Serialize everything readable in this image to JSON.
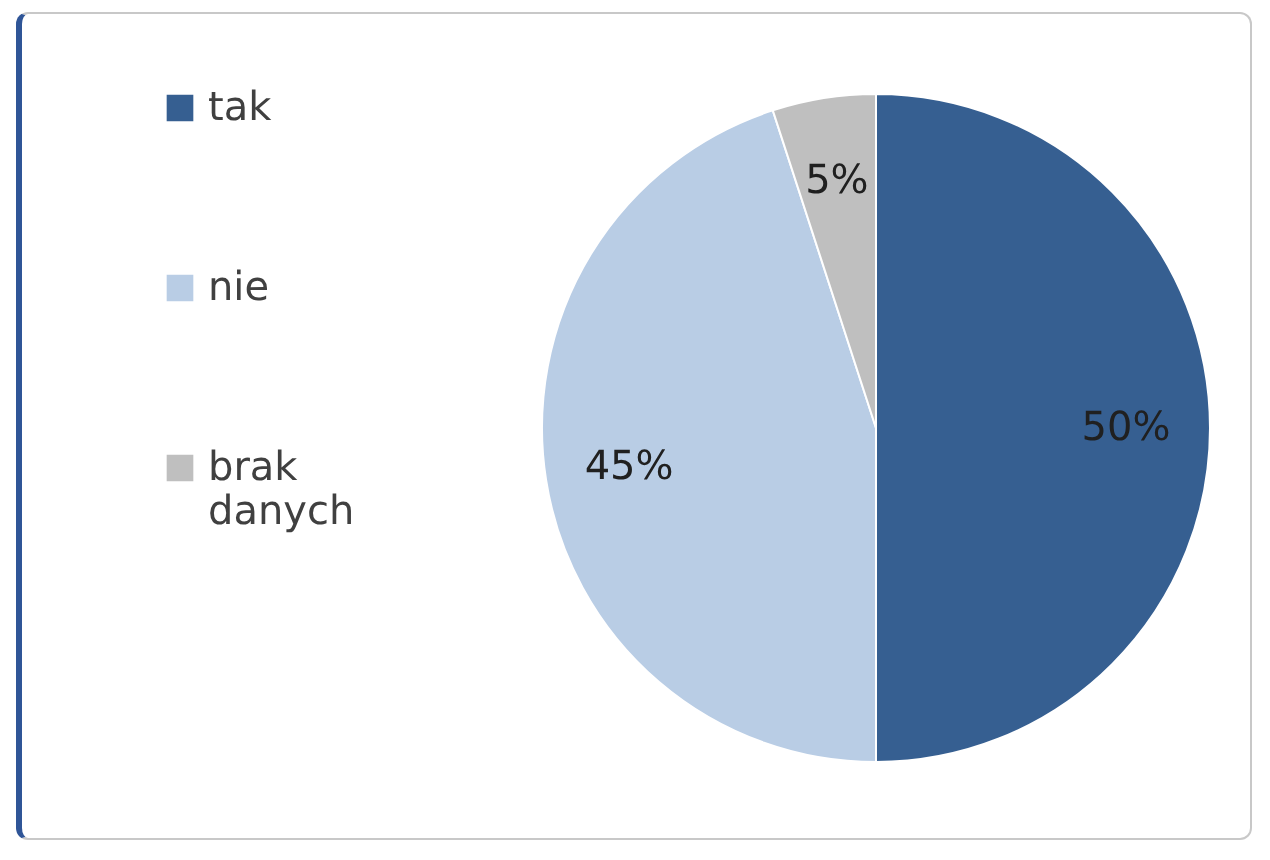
{
  "chart_data": {
    "type": "pie",
    "categories": [
      "tak",
      "nie",
      "brak danych"
    ],
    "values": [
      50,
      45,
      5
    ],
    "colors": [
      "#365f91",
      "#b9cde5",
      "#bfbfbf"
    ],
    "value_labels": [
      "50%",
      "45%",
      "5%"
    ],
    "legend": "left"
  }
}
